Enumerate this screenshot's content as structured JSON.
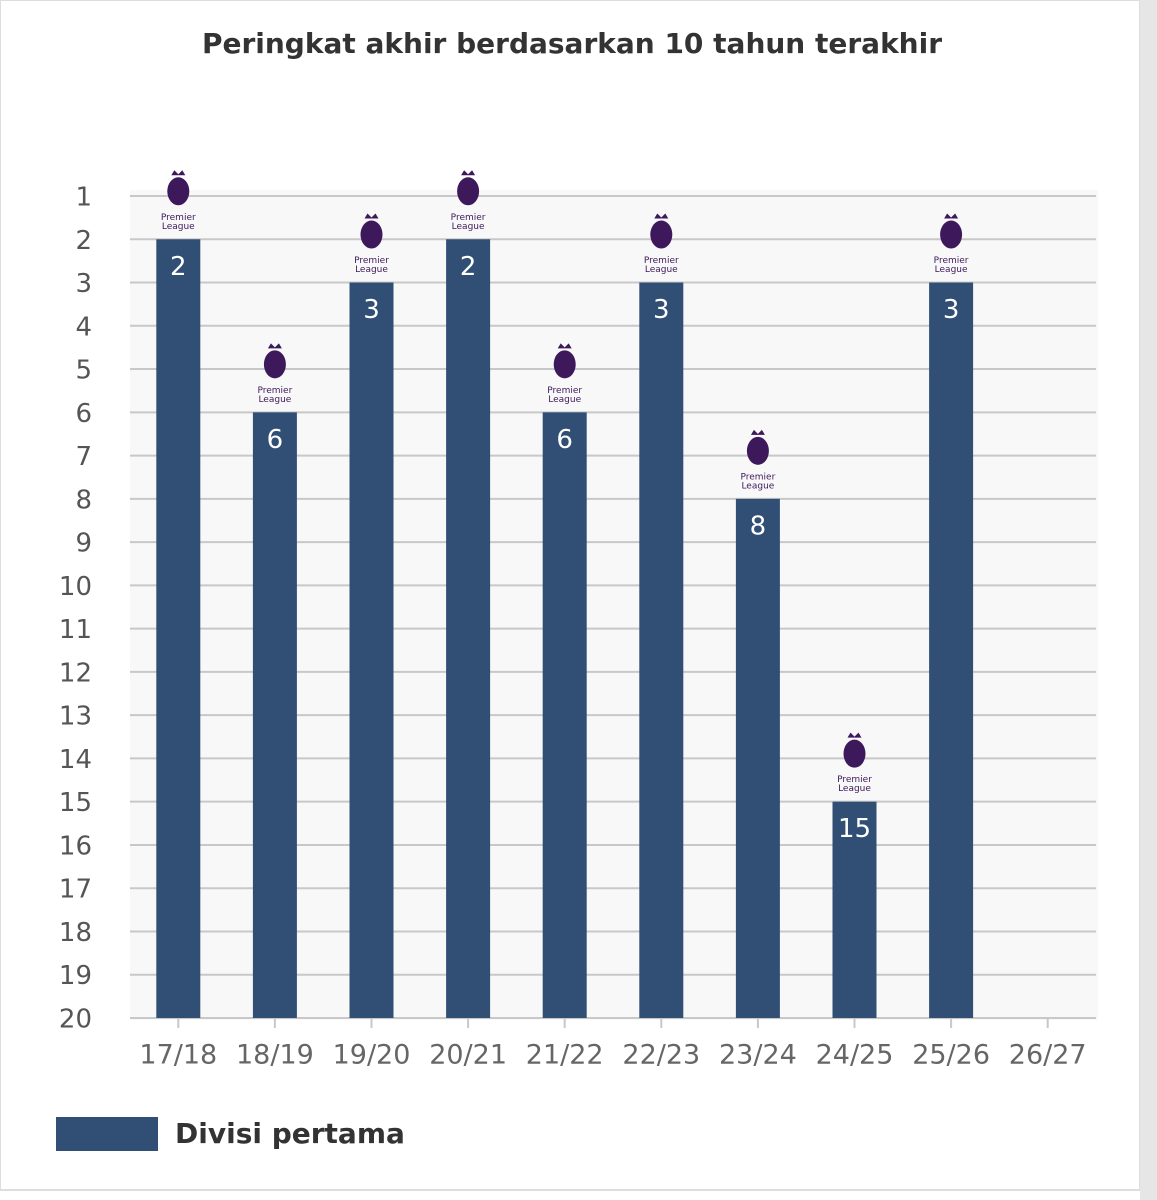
{
  "chart_data": {
    "type": "bar",
    "title": "Peringkat akhir berdasarkan 10 tahun terakhir",
    "categories": [
      "17/18",
      "18/19",
      "19/20",
      "20/21",
      "21/22",
      "22/23",
      "23/24",
      "24/25",
      "25/26",
      "26/27"
    ],
    "series": [
      {
        "name": "Divisi pertama",
        "color": "#314f75",
        "values": [
          2,
          6,
          3,
          2,
          6,
          3,
          8,
          15,
          3,
          null
        ]
      }
    ],
    "ylim": [
      1,
      20
    ],
    "y_inverted": true,
    "yticks": [
      1,
      2,
      3,
      4,
      5,
      6,
      7,
      8,
      9,
      10,
      11,
      12,
      13,
      14,
      15,
      16,
      17,
      18,
      19,
      20
    ],
    "grid": true,
    "legend": "bottom-left",
    "logo_text": [
      "Premier",
      "League"
    ]
  }
}
